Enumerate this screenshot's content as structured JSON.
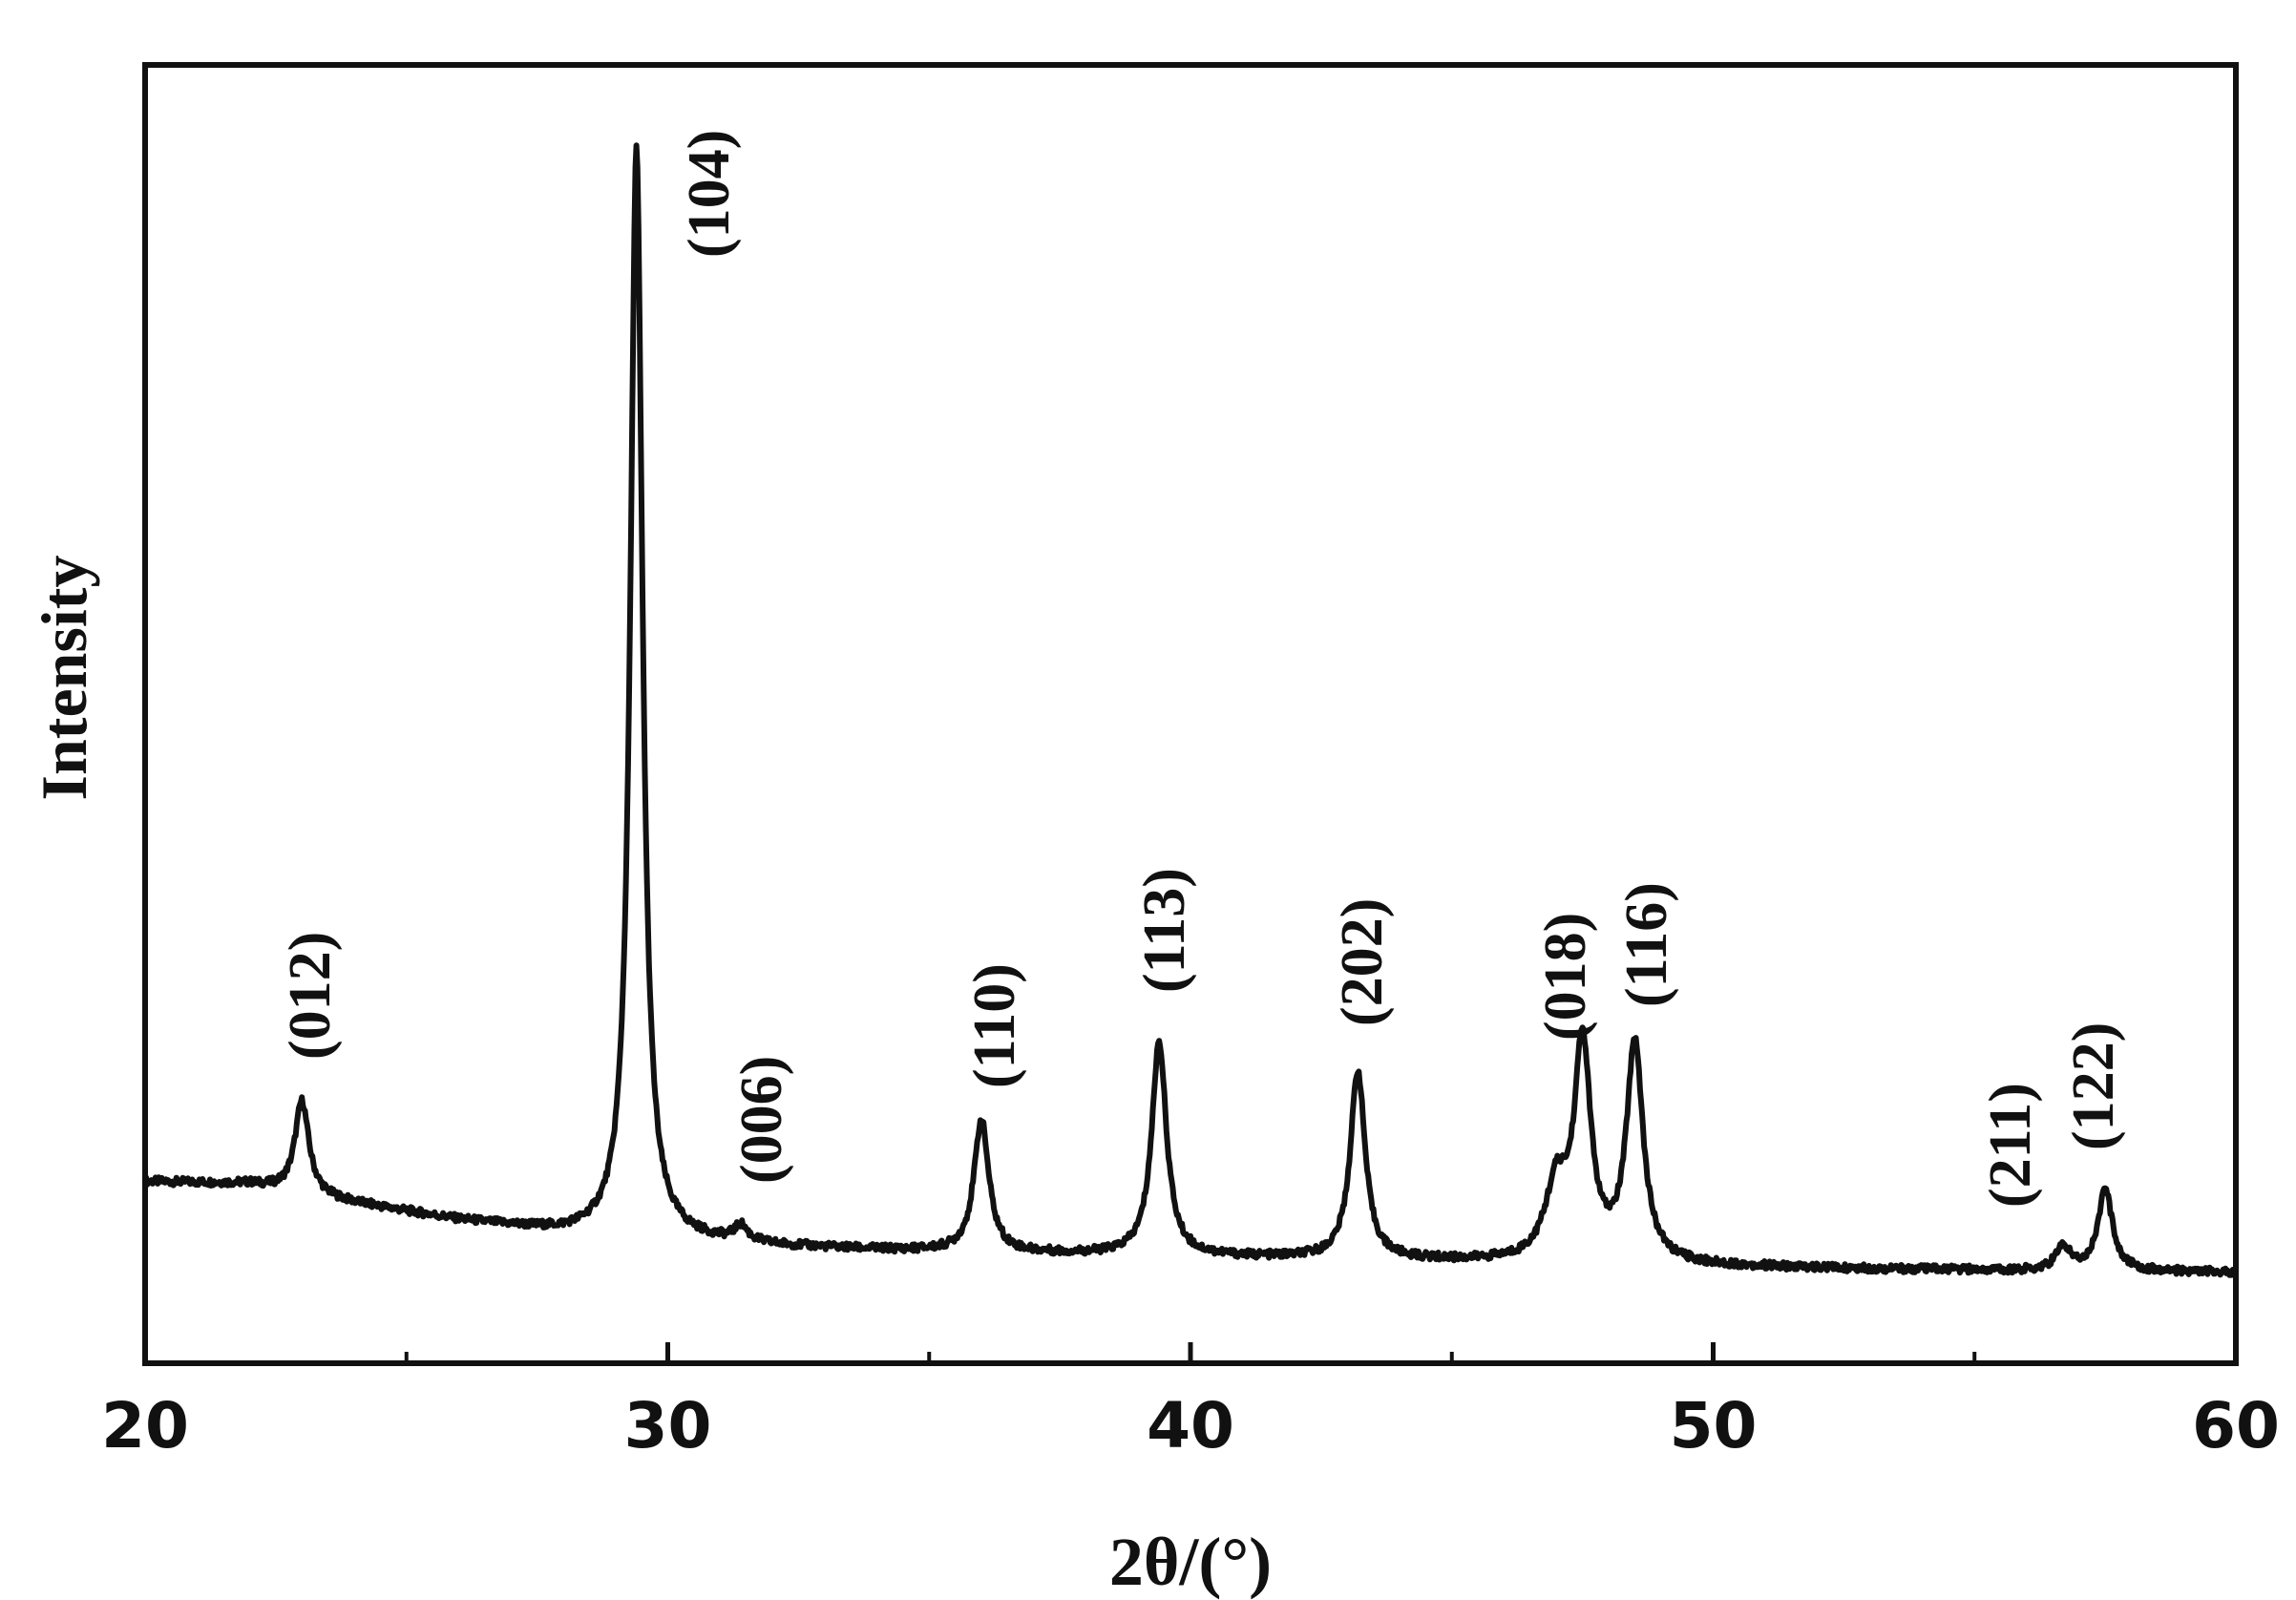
{
  "chart_data": {
    "type": "line",
    "xlabel": "2θ/(°)",
    "ylabel": "Intensity",
    "xlim": [
      20,
      60
    ],
    "ylim": [
      0,
      1
    ],
    "x_ticks": [
      "20",
      "30",
      "40",
      "50",
      "60"
    ],
    "x_minor_ticks": [
      25,
      35,
      45,
      55
    ],
    "y_tick_labels_shown": false,
    "grid": false,
    "legend": "none",
    "line_color": "#111111",
    "background": [
      [
        20.0,
        0.14
      ],
      [
        22.0,
        0.138
      ],
      [
        23.0,
        0.13
      ],
      [
        24.0,
        0.123
      ],
      [
        26.0,
        0.11
      ],
      [
        28.0,
        0.1
      ],
      [
        30.0,
        0.095
      ],
      [
        32.0,
        0.09
      ],
      [
        34.0,
        0.087
      ],
      [
        36.0,
        0.085
      ],
      [
        40.0,
        0.082
      ],
      [
        44.0,
        0.079
      ],
      [
        48.0,
        0.076
      ],
      [
        52.0,
        0.073
      ],
      [
        56.0,
        0.071
      ],
      [
        60.0,
        0.07
      ]
    ],
    "peaks": [
      {
        "hkl": "(012)",
        "x": 23.0,
        "height": 0.072,
        "fwhm": 0.32
      },
      {
        "hkl": "(104)",
        "x": 29.4,
        "height": 0.84,
        "fwhm": 0.28
      },
      {
        "hkl": "(006)",
        "x": 31.4,
        "height": 0.012,
        "fwhm": 0.3
      },
      {
        "hkl": "(110)",
        "x": 36.0,
        "height": 0.102,
        "fwhm": 0.34
      },
      {
        "hkl": "(113)",
        "x": 39.4,
        "height": 0.165,
        "fwhm": 0.34
      },
      {
        "hkl": "(202)",
        "x": 43.2,
        "height": 0.145,
        "fwhm": 0.34
      },
      {
        "hkl": "(018)",
        "x": 47.5,
        "height": 0.165,
        "fwhm": 0.38
      },
      {
        "hkl": "(116)",
        "x": 48.5,
        "height": 0.168,
        "fwhm": 0.38
      },
      {
        "hkl": "(211)",
        "x": 56.7,
        "height": 0.018,
        "fwhm": 0.35
      },
      {
        "hkl": "(122)",
        "x": 57.5,
        "height": 0.062,
        "fwhm": 0.34
      }
    ],
    "shoulders": [
      {
        "x": 47.0,
        "height": 0.055,
        "fwhm": 0.5
      }
    ]
  }
}
